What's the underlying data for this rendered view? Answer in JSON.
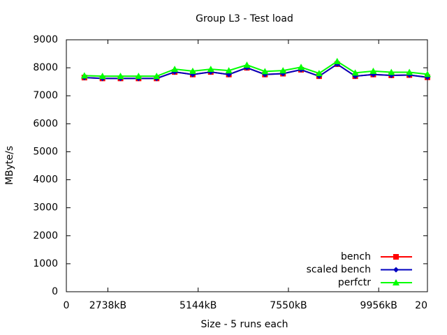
{
  "chart_data": {
    "type": "line",
    "title": "Group L3 - Test load",
    "x_label": "Size - 5 runs each",
    "y_label": "MByte/s",
    "x": [
      1,
      2,
      3,
      4,
      5,
      6,
      7,
      8,
      9,
      10,
      11,
      12,
      13,
      14,
      15,
      16,
      17,
      18,
      19,
      20
    ],
    "series": [
      {
        "name": "bench",
        "color": "#ff0000",
        "marker": "square",
        "values": [
          7650,
          7620,
          7620,
          7620,
          7620,
          7850,
          7760,
          7850,
          7760,
          8000,
          7760,
          7790,
          7930,
          7700,
          8130,
          7700,
          7760,
          7730,
          7740,
          7660
        ]
      },
      {
        "name": "scaled bench",
        "color": "#0000c0",
        "marker": "diamond",
        "values": [
          7650,
          7620,
          7620,
          7620,
          7620,
          7850,
          7760,
          7850,
          7760,
          8000,
          7760,
          7790,
          7930,
          7700,
          8130,
          7700,
          7760,
          7730,
          7740,
          7660
        ]
      },
      {
        "name": "perfctr",
        "color": "#00ff00",
        "marker": "triangle",
        "values": [
          7720,
          7700,
          7700,
          7700,
          7700,
          7950,
          7880,
          7950,
          7900,
          8100,
          7870,
          7900,
          8020,
          7800,
          8230,
          7820,
          7880,
          7840,
          7840,
          7770
        ]
      }
    ],
    "xlim": [
      0,
      20
    ],
    "xticks": [
      0,
      {
        "value": 2.3,
        "label": "2738kB"
      },
      {
        "value": 7.3,
        "label": "5144kB"
      },
      {
        "value": 12.3,
        "label": "7550kB"
      },
      {
        "value": 17.3,
        "label": "9956kB"
      },
      20
    ],
    "ylim": [
      0,
      9000
    ],
    "yticks": [
      0,
      1000,
      2000,
      3000,
      4000,
      5000,
      6000,
      7000,
      8000,
      9000
    ],
    "grid": false,
    "legend": "bottom-right"
  }
}
